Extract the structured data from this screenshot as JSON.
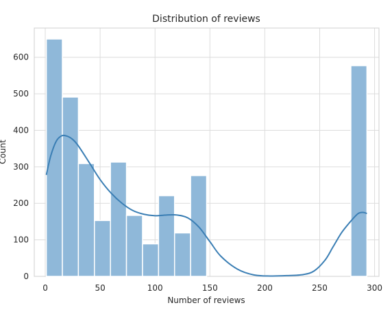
{
  "chart_data": {
    "type": "bar",
    "title": "Distribution of reviews",
    "xlabel": "Number of reviews",
    "ylabel": "Count",
    "xlim": [
      -10,
      304
    ],
    "ylim": [
      0,
      680
    ],
    "xticks": [
      0,
      50,
      100,
      150,
      200,
      250,
      300
    ],
    "yticks": [
      0,
      100,
      200,
      300,
      400,
      500,
      600
    ],
    "grid": true,
    "bar_color": "#8fb8d9",
    "bar_edge_color": "#ffffff",
    "kde_color": "#3a7eb4",
    "bins": [
      {
        "start": 1,
        "end": 15.6,
        "count": 650
      },
      {
        "start": 15.6,
        "end": 30.2,
        "count": 491
      },
      {
        "start": 30.2,
        "end": 44.8,
        "count": 309
      },
      {
        "start": 44.8,
        "end": 59.4,
        "count": 153
      },
      {
        "start": 59.4,
        "end": 74,
        "count": 313
      },
      {
        "start": 74,
        "end": 88.6,
        "count": 167
      },
      {
        "start": 88.6,
        "end": 103.2,
        "count": 89
      },
      {
        "start": 103.2,
        "end": 117.8,
        "count": 221
      },
      {
        "start": 117.8,
        "end": 132.4,
        "count": 119
      },
      {
        "start": 132.4,
        "end": 147,
        "count": 276
      },
      {
        "start": 147,
        "end": 161.6,
        "count": 0
      },
      {
        "start": 161.6,
        "end": 176.2,
        "count": 0
      },
      {
        "start": 176.2,
        "end": 190.8,
        "count": 0
      },
      {
        "start": 190.8,
        "end": 205.4,
        "count": 0
      },
      {
        "start": 205.4,
        "end": 220,
        "count": 0
      },
      {
        "start": 220,
        "end": 234.6,
        "count": 0
      },
      {
        "start": 234.6,
        "end": 249.2,
        "count": 0
      },
      {
        "start": 249.2,
        "end": 263.8,
        "count": 0
      },
      {
        "start": 263.8,
        "end": 278.4,
        "count": 0
      },
      {
        "start": 278.4,
        "end": 293,
        "count": 577
      }
    ],
    "kde": {
      "x": [
        1,
        5,
        10,
        15,
        20,
        25,
        30,
        40,
        50,
        60,
        70,
        80,
        90,
        100,
        110,
        120,
        130,
        140,
        150,
        160,
        175,
        190,
        205,
        220,
        235,
        245,
        255,
        262,
        270,
        278,
        285,
        290,
        293
      ],
      "y": [
        278,
        330,
        370,
        385,
        384,
        375,
        358,
        312,
        265,
        228,
        200,
        180,
        170,
        166,
        168,
        168,
        160,
        135,
        95,
        55,
        20,
        4,
        1,
        2,
        5,
        15,
        45,
        80,
        120,
        150,
        172,
        175,
        172
      ]
    }
  }
}
